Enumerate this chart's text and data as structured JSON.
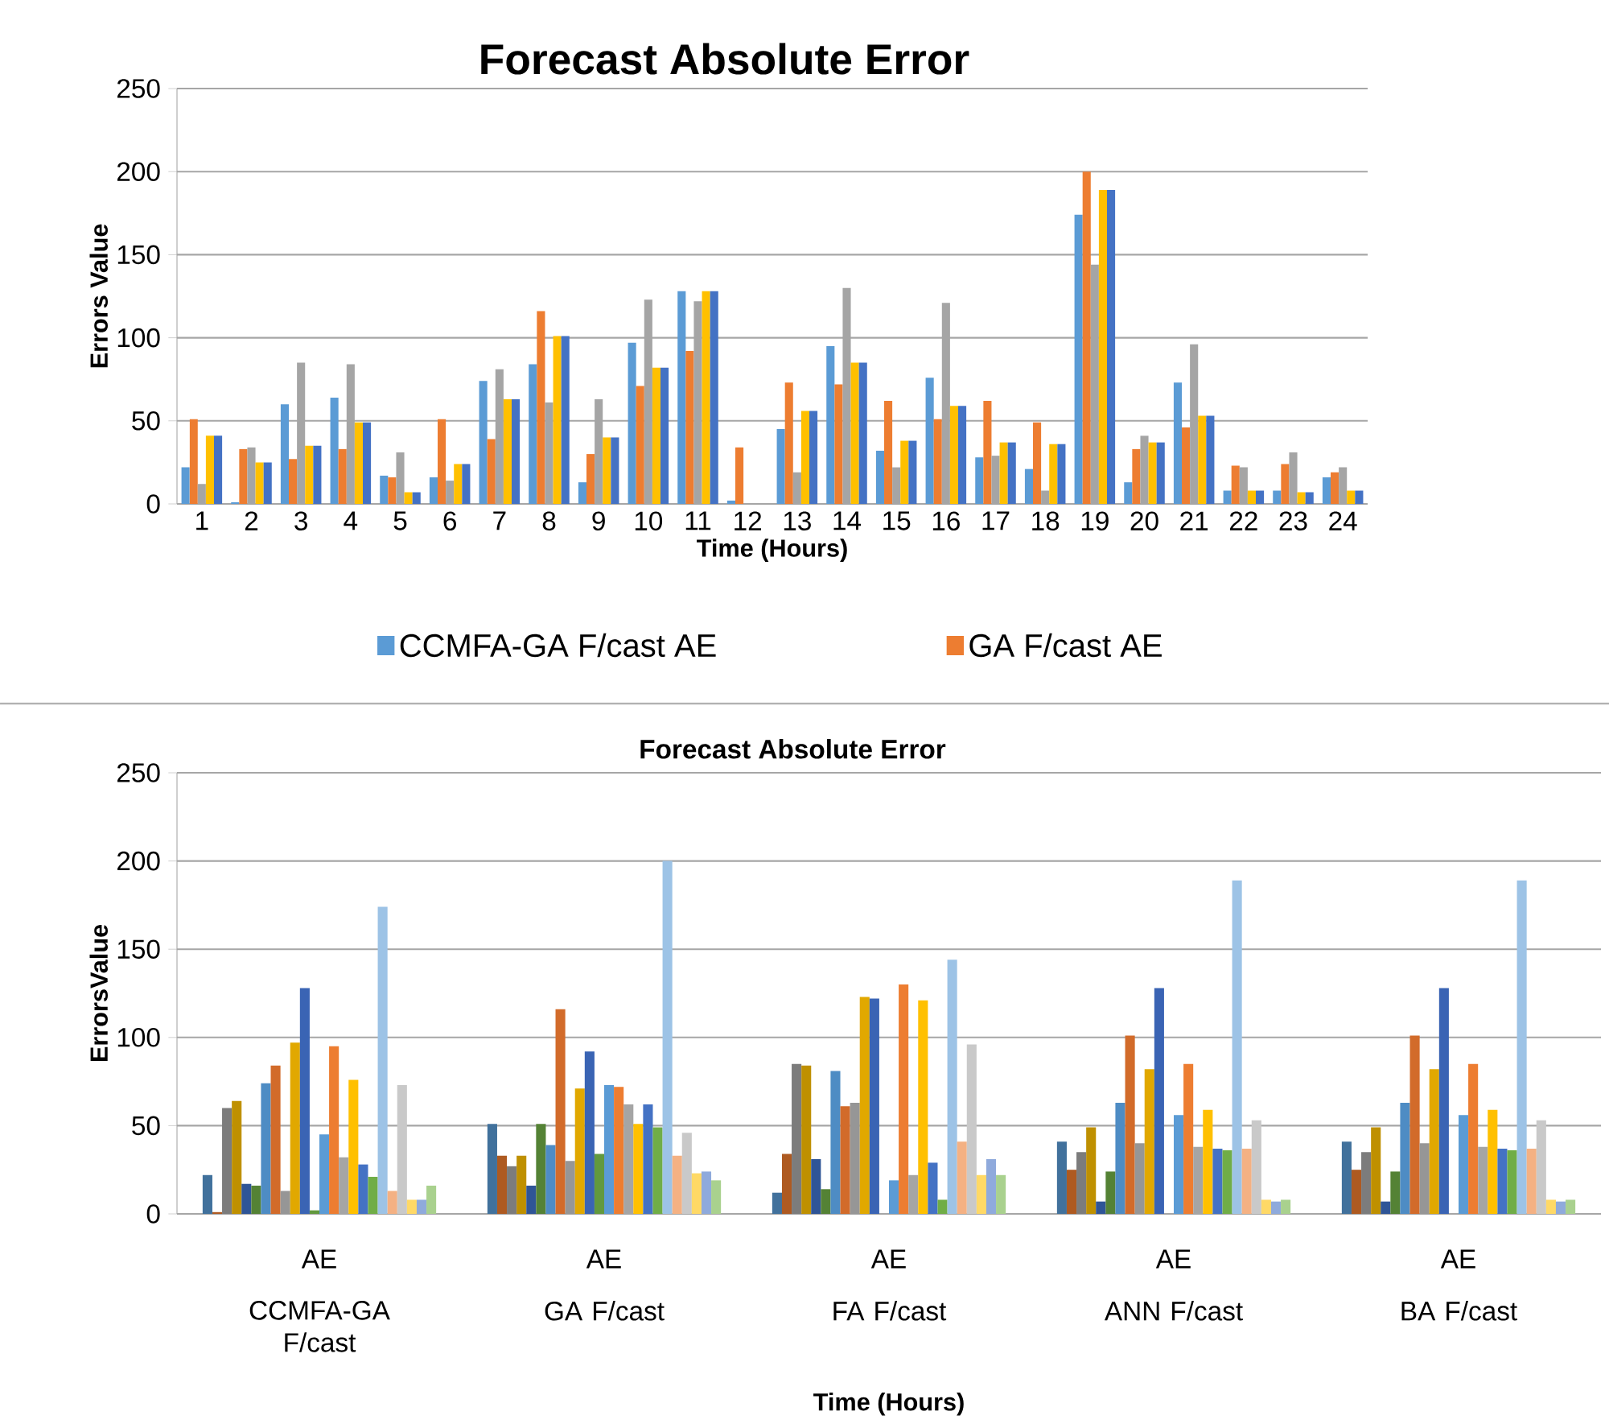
{
  "chart_data": [
    {
      "type": "bar",
      "title": "Forecast Absolute Error",
      "xlabel": "Time (Hours)",
      "ylabel": "Errors Value",
      "categories": [
        "1",
        "2",
        "3",
        "4",
        "5",
        "6",
        "7",
        "8",
        "9",
        "10",
        "11",
        "12",
        "13",
        "14",
        "15",
        "16",
        "17",
        "18",
        "19",
        "20",
        "21",
        "22",
        "23",
        "24"
      ],
      "series": [
        {
          "name": "CCMFA-GA F/cast AE",
          "color": "#5b9bd5",
          "values": [
            22,
            1,
            60,
            64,
            17,
            16,
            74,
            84,
            13,
            97,
            128,
            2,
            45,
            95,
            32,
            76,
            28,
            21,
            174,
            13,
            73,
            8,
            8,
            16
          ]
        },
        {
          "name": "GA F/cast AE",
          "color": "#ed7d31",
          "values": [
            51,
            33,
            27,
            33,
            16,
            51,
            39,
            116,
            30,
            71,
            92,
            34,
            73,
            72,
            62,
            51,
            62,
            49,
            200,
            33,
            46,
            23,
            24,
            19
          ]
        },
        {
          "color": "#a5a5a5",
          "values": [
            12,
            34,
            85,
            84,
            31,
            14,
            81,
            61,
            63,
            123,
            122,
            0,
            19,
            130,
            22,
            121,
            29,
            8,
            144,
            41,
            96,
            22,
            31,
            22
          ]
        },
        {
          "color": "#ffc000",
          "values": [
            41,
            25,
            35,
            49,
            7,
            24,
            63,
            101,
            40,
            82,
            128,
            0,
            56,
            85,
            38,
            59,
            37,
            36,
            189,
            37,
            53,
            8,
            7,
            8
          ]
        },
        {
          "color": "#4472c4",
          "values": [
            41,
            25,
            35,
            49,
            7,
            24,
            63,
            101,
            40,
            82,
            128,
            0,
            56,
            85,
            38,
            59,
            37,
            36,
            189,
            37,
            53,
            8,
            7,
            8
          ]
        }
      ],
      "ylim": [
        0,
        250
      ],
      "yticks": [
        0,
        50,
        100,
        150,
        200,
        250
      ],
      "grid": "y",
      "legend": "bottom"
    },
    {
      "type": "bar",
      "title": "Forecast Absolute Error",
      "xlabel": "Time (Hours)",
      "ylabel": "ErrorsValue",
      "categories": [
        "CCMFA-GA F/cast",
        "GA F/cast",
        "FA F/cast",
        "ANN F/cast",
        "BA F/cast"
      ],
      "annotations": [
        "AE",
        "AE",
        "AE",
        "AE",
        "AE"
      ],
      "series": [
        {
          "color": "#41719c",
          "values": [
            22,
            51,
            12,
            41,
            41
          ]
        },
        {
          "color": "#ae5a21",
          "values": [
            1,
            33,
            34,
            25,
            25
          ]
        },
        {
          "color": "#7c7c7c",
          "values": [
            60,
            27,
            85,
            35,
            35
          ]
        },
        {
          "color": "#bf9000",
          "values": [
            64,
            33,
            84,
            49,
            49
          ]
        },
        {
          "color": "#2f5597",
          "values": [
            17,
            16,
            31,
            7,
            7
          ]
        },
        {
          "color": "#548235",
          "values": [
            16,
            51,
            14,
            24,
            24
          ]
        },
        {
          "color": "#4e8cc4",
          "values": [
            74,
            39,
            81,
            63,
            63
          ]
        },
        {
          "color": "#d26b2a",
          "values": [
            84,
            116,
            61,
            101,
            101
          ]
        },
        {
          "color": "#969696",
          "values": [
            13,
            30,
            63,
            40,
            40
          ]
        },
        {
          "color": "#e1a800",
          "values": [
            97,
            71,
            123,
            82,
            82
          ]
        },
        {
          "color": "#3a64b4",
          "values": [
            128,
            92,
            122,
            128,
            128
          ]
        },
        {
          "color": "#62993e",
          "values": [
            2,
            34,
            0,
            0,
            0
          ]
        },
        {
          "color": "#5b9bd5",
          "values": [
            45,
            73,
            19,
            56,
            56
          ]
        },
        {
          "color": "#ed7d31",
          "values": [
            95,
            72,
            130,
            85,
            85
          ]
        },
        {
          "color": "#a5a5a5",
          "values": [
            32,
            62,
            22,
            38,
            38
          ]
        },
        {
          "color": "#ffc000",
          "values": [
            76,
            51,
            121,
            59,
            59
          ]
        },
        {
          "color": "#4472c4",
          "values": [
            28,
            62,
            29,
            37,
            37
          ]
        },
        {
          "color": "#70ad47",
          "values": [
            21,
            49,
            8,
            36,
            36
          ]
        },
        {
          "color": "#9dc3e6",
          "values": [
            174,
            200,
            144,
            189,
            189
          ]
        },
        {
          "color": "#f4b183",
          "values": [
            13,
            33,
            41,
            37,
            37
          ]
        },
        {
          "color": "#c9c9c9",
          "values": [
            73,
            46,
            96,
            53,
            53
          ]
        },
        {
          "color": "#ffd966",
          "values": [
            8,
            23,
            22,
            8,
            8
          ]
        },
        {
          "color": "#8faadc",
          "values": [
            8,
            24,
            31,
            7,
            7
          ]
        },
        {
          "color": "#a9d18e",
          "values": [
            16,
            19,
            22,
            8,
            8
          ]
        }
      ],
      "ylim": [
        0,
        250
      ],
      "yticks": [
        0,
        50,
        100,
        150,
        200,
        250
      ],
      "grid": "y"
    }
  ]
}
